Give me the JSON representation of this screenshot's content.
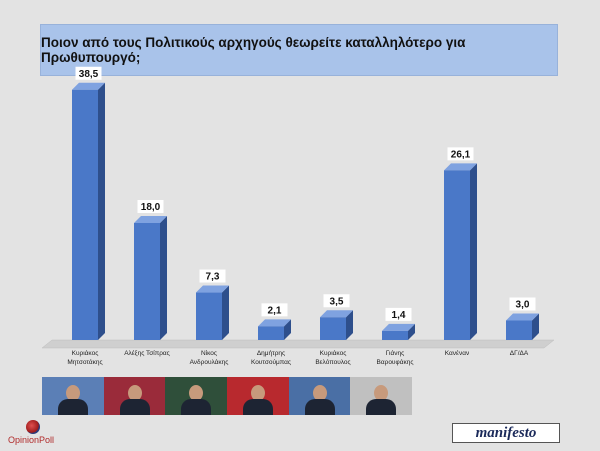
{
  "title": "Ποιον από τους Πολιτικούς αρχηγούς θεωρείτε καταλληλότερο για Πρωθυπουργό;",
  "chart_data": {
    "type": "bar",
    "title": "Ποιον από τους Πολιτικούς αρχηγούς θεωρείτε καταλληλότερο για Πρωθυπουργό;",
    "categories": [
      [
        "Κυριάκος",
        "Μητσοτάκης"
      ],
      [
        "Αλέξης Τσίπρας"
      ],
      [
        "Νίκος",
        "Ανδρουλάκης"
      ],
      [
        "Δημήτρης",
        "Κουτσούμπας"
      ],
      [
        "Κυριάκος",
        "Βελόπουλος"
      ],
      [
        "Γιάνης",
        "Βαρουφάκης"
      ],
      [
        "Κανέναν"
      ],
      [
        "ΔΓ/ΔΑ"
      ]
    ],
    "values": [
      38.5,
      18.0,
      7.3,
      2.1,
      3.5,
      1.4,
      26.1,
      3.0
    ],
    "value_labels": [
      "38,5",
      "18,0",
      "7,3",
      "2,1",
      "3,5",
      "1,4",
      "26,1",
      "3,0"
    ],
    "bar_color": "#4a78c8",
    "bar_side_color": "#2e4f8c",
    "bar_top_color": "#7fa2e0",
    "ylim": [
      0,
      40
    ],
    "grid": false,
    "legend": "none"
  },
  "photos": [
    {
      "icon": "kyriakos-mitsotakis-photo",
      "bg": "#5b7fb6"
    },
    {
      "icon": "alexis-tsipras-photo",
      "bg": "#9a2b3a"
    },
    {
      "icon": "nikos-androulakis-photo",
      "bg": "#2f4f3a"
    },
    {
      "icon": "dimitris-koutsoumpas-photo",
      "bg": "#b8292e"
    },
    {
      "icon": "kyriakos-velopoulos-photo",
      "bg": "#4a6fa5"
    },
    {
      "icon": "yanis-varoufakis-photo",
      "bg": "#c0c0c0"
    }
  ],
  "logos": {
    "opinion_poll": "OpinionPoll",
    "manifesto": "manifesto"
  }
}
